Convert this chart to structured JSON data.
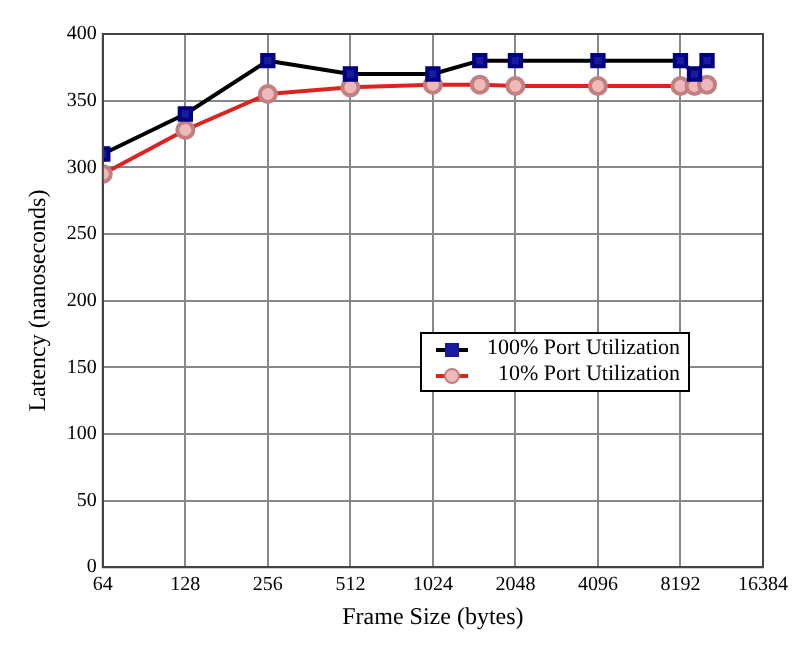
{
  "chart_data": {
    "type": "line",
    "xlabel": "Frame Size (bytes)",
    "ylabel": "Latency (nanoseconds)",
    "log": "x",
    "x": [
      64,
      128,
      256,
      512,
      1024,
      1518,
      2048,
      4096,
      8192,
      9216,
      10240
    ],
    "series": [
      {
        "name": "100% Port Utilization",
        "color": "#1a1aa0",
        "values": [
          310,
          340,
          380,
          370,
          370,
          380,
          380,
          380,
          380,
          370,
          380
        ],
        "marker": "square"
      },
      {
        "name": "10% Port Utilization",
        "color": "#f0b8b8",
        "values": [
          295,
          328,
          355,
          360,
          362,
          362,
          361,
          361,
          361,
          361,
          362
        ],
        "marker": "circle"
      }
    ],
    "xlim": [
      64,
      16384
    ],
    "xticks": [
      64,
      128,
      256,
      512,
      1024,
      2048,
      4096,
      8192,
      16384
    ],
    "ylim": [
      0,
      400
    ],
    "yticks": [
      0,
      50,
      100,
      150,
      200,
      250,
      300,
      350,
      400
    ],
    "grid": true,
    "legend": "right",
    "line_style": "solid"
  }
}
